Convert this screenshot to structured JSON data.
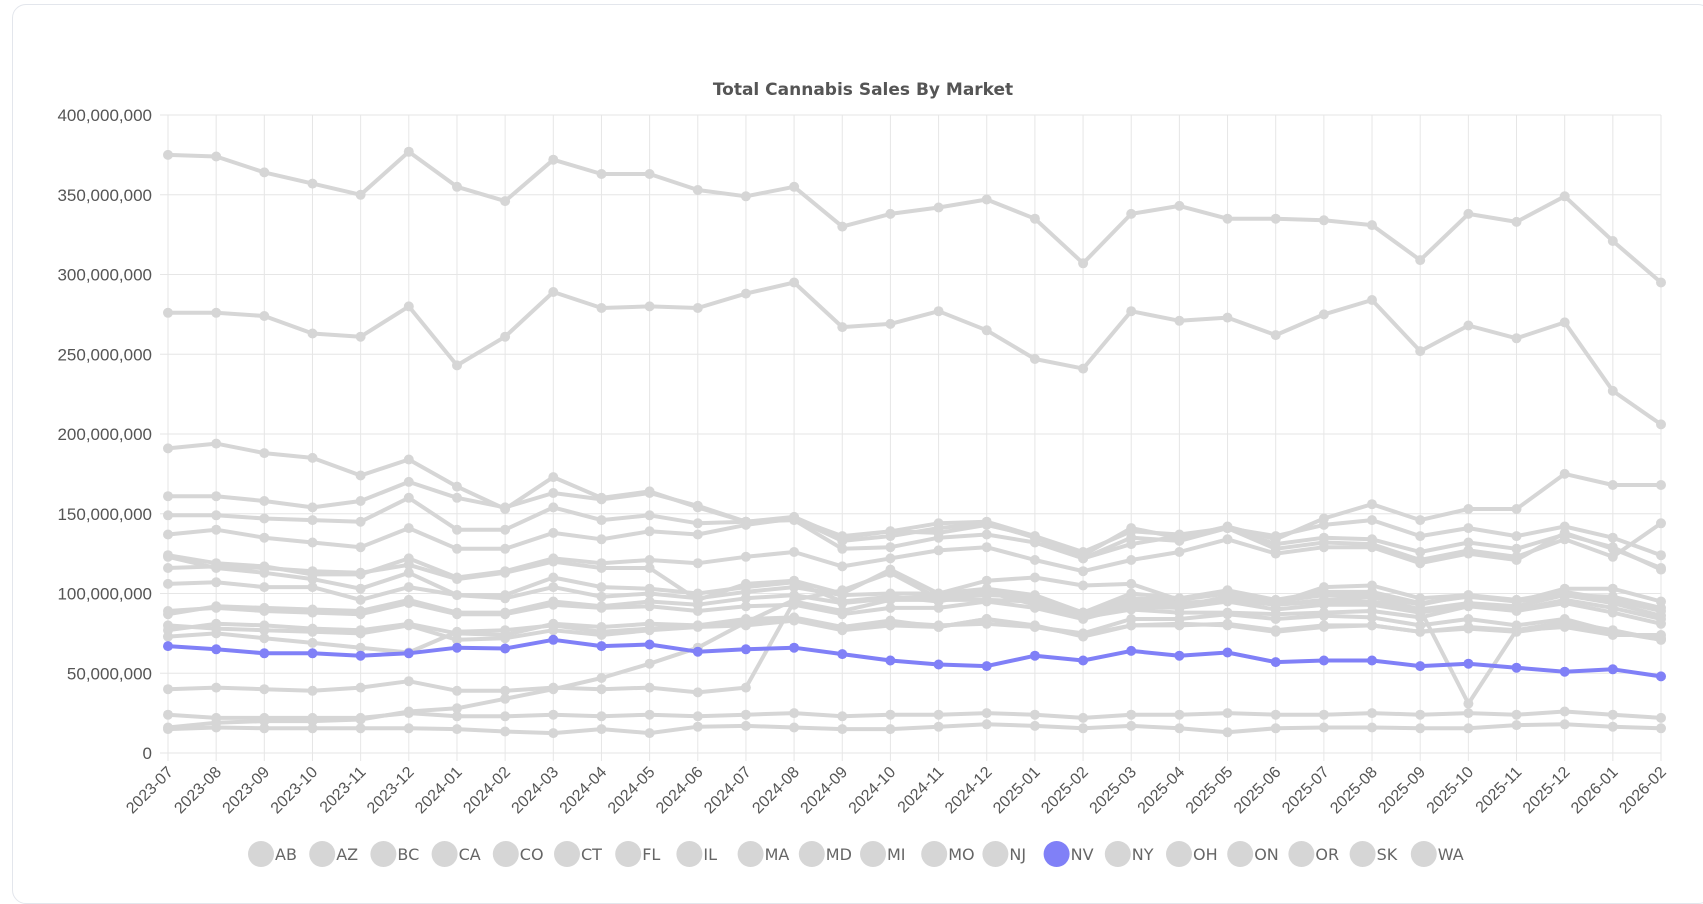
{
  "chart_data": {
    "type": "line",
    "title": "Total Cannabis Sales By Market",
    "xlabel": "",
    "ylabel": "",
    "ylim": [
      0,
      400000000
    ],
    "yticks": [
      "0",
      "50,000,000",
      "100,000,000",
      "150,000,000",
      "200,000,000",
      "250,000,000",
      "300,000,000",
      "350,000,000",
      "400,000,000"
    ],
    "grid": true,
    "legend_position": "bottom",
    "highlighted_series": "NV",
    "colors": {
      "muted": "#d6d6d6",
      "highlight": "#8080f7",
      "grid": "#e6e6e6",
      "text": "#555555"
    },
    "x": [
      "2023-07",
      "2023-08",
      "2023-09",
      "2023-10",
      "2023-11",
      "2023-12",
      "2024-01",
      "2024-02",
      "2024-03",
      "2024-04",
      "2024-05",
      "2024-06",
      "2024-07",
      "2024-08",
      "2024-09",
      "2024-10",
      "2024-11",
      "2024-12",
      "2025-01",
      "2025-02",
      "2025-03",
      "2025-04",
      "2025-05",
      "2025-06",
      "2025-07",
      "2025-08",
      "2025-09",
      "2025-10",
      "2025-11",
      "2025-12",
      "2026-01",
      "2026-02"
    ],
    "series": [
      {
        "name": "AB",
        "values": [
          124000000,
          119000000,
          117000000,
          112000000,
          112000000,
          122000000,
          110000000,
          114000000,
          122000000,
          119000000,
          121000000,
          119000000,
          123000000,
          126000000,
          117000000,
          122000000,
          127000000,
          129000000,
          121000000,
          114000000,
          121000000,
          126000000,
          134000000,
          125000000,
          129000000,
          129000000,
          119000000,
          125000000,
          121000000,
          138000000,
          128000000,
          116000000
        ]
      },
      {
        "name": "AZ",
        "values": [
          80000000,
          78000000,
          77000000,
          76000000,
          75000000,
          80000000,
          71000000,
          72000000,
          77000000,
          74000000,
          77000000,
          79000000,
          80000000,
          83000000,
          77000000,
          80000000,
          79000000,
          84000000,
          80000000,
          73000000,
          80000000,
          81000000,
          80000000,
          76000000,
          79000000,
          80000000,
          76000000,
          79000000,
          77000000,
          82000000,
          77000000,
          71000000
        ]
      },
      {
        "name": "BC",
        "values": [
          87000000,
          92000000,
          91000000,
          90000000,
          89000000,
          96000000,
          88000000,
          88000000,
          95000000,
          92000000,
          95000000,
          93000000,
          97000000,
          99000000,
          94000000,
          97000000,
          98000000,
          101000000,
          96000000,
          88000000,
          97000000,
          96000000,
          101000000,
          95000000,
          99000000,
          99000000,
          93000000,
          99000000,
          96000000,
          101000000,
          96000000,
          89000000
        ]
      },
      {
        "name": "CA",
        "values": [
          375000000,
          374000000,
          364000000,
          357000000,
          350000000,
          377000000,
          355000000,
          346000000,
          372000000,
          363000000,
          363000000,
          353000000,
          349000000,
          355000000,
          330000000,
          338000000,
          342000000,
          347000000,
          335000000,
          307000000,
          338000000,
          343000000,
          335000000,
          335000000,
          334000000,
          331000000,
          309000000,
          338000000,
          333000000,
          349000000,
          321000000,
          295000000
        ]
      },
      {
        "name": "CO",
        "values": [
          123000000,
          116000000,
          113000000,
          109000000,
          103000000,
          113000000,
          99000000,
          99000000,
          110000000,
          104000000,
          103000000,
          100000000,
          104000000,
          107000000,
          95000000,
          98000000,
          95000000,
          101000000,
          93000000,
          86000000,
          94000000,
          92000000,
          98000000,
          93000000,
          95000000,
          95000000,
          90000000,
          94000000,
          92000000,
          99000000,
          94000000,
          86000000
        ]
      },
      {
        "name": "CT",
        "values": [
          24000000,
          22000000,
          22000000,
          22000000,
          22000000,
          25000000,
          23000000,
          23000000,
          24000000,
          23000000,
          24000000,
          23000000,
          24000000,
          25000000,
          23000000,
          24000000,
          24000000,
          25000000,
          24000000,
          22000000,
          24000000,
          24000000,
          25000000,
          24000000,
          24000000,
          25000000,
          24000000,
          25000000,
          24000000,
          26000000,
          24000000,
          22000000
        ]
      },
      {
        "name": "FL",
        "values": [
          161000000,
          161000000,
          158000000,
          154000000,
          158000000,
          170000000,
          160000000,
          154000000,
          163000000,
          159000000,
          163000000,
          155000000,
          145000000,
          148000000,
          135000000,
          139000000,
          138000000,
          143000000,
          136000000,
          124000000,
          141000000,
          135000000,
          142000000,
          134000000,
          147000000,
          156000000,
          146000000,
          153000000,
          153000000,
          175000000,
          168000000,
          168000000
        ]
      },
      {
        "name": "IL",
        "values": [
          149000000,
          149000000,
          147000000,
          146000000,
          145000000,
          160000000,
          140000000,
          140000000,
          154000000,
          146000000,
          149000000,
          144000000,
          145000000,
          147000000,
          136000000,
          139000000,
          144000000,
          145000000,
          136000000,
          126000000,
          139000000,
          137000000,
          141000000,
          136000000,
          143000000,
          146000000,
          136000000,
          141000000,
          136000000,
          142000000,
          135000000,
          124000000
        ]
      },
      {
        "name": "MA",
        "values": [
          137000000,
          140000000,
          135000000,
          132000000,
          129000000,
          141000000,
          128000000,
          128000000,
          138000000,
          134000000,
          139000000,
          137000000,
          143000000,
          147000000,
          133000000,
          136000000,
          141000000,
          144000000,
          135000000,
          122000000,
          135000000,
          133000000,
          141000000,
          131000000,
          135000000,
          134000000,
          126000000,
          132000000,
          128000000,
          137000000,
          129000000,
          115000000
        ]
      },
      {
        "name": "MD",
        "values": [
          89000000,
          91000000,
          89000000,
          88000000,
          87000000,
          94000000,
          87000000,
          87000000,
          93000000,
          91000000,
          92000000,
          89000000,
          92000000,
          93000000,
          87000000,
          91000000,
          91000000,
          95000000,
          91000000,
          84000000,
          92000000,
          91000000,
          95000000,
          90000000,
          93000000,
          93000000,
          88000000,
          93000000,
          90000000,
          96000000,
          91000000,
          84000000
        ]
      },
      {
        "name": "MI",
        "values": [
          191000000,
          194000000,
          188000000,
          185000000,
          174000000,
          184000000,
          167000000,
          153000000,
          173000000,
          160000000,
          164000000,
          154000000,
          145000000,
          146000000,
          128000000,
          129000000,
          135000000,
          137000000,
          132000000,
          122000000,
          131000000,
          136000000,
          141000000,
          128000000,
          132000000,
          131000000,
          121000000,
          127000000,
          123000000,
          134000000,
          123000000,
          144000000
        ]
      },
      {
        "name": "MO",
        "values": [
          116000000,
          117000000,
          116000000,
          114000000,
          113000000,
          118000000,
          109000000,
          113000000,
          120000000,
          116000000,
          116000000,
          96000000,
          106000000,
          108000000,
          100000000,
          115000000,
          100000000,
          108000000,
          110000000,
          105000000,
          106000000,
          96000000,
          100000000,
          94000000,
          104000000,
          105000000,
          97000000,
          99000000,
          95000000,
          103000000,
          103000000,
          95000000
        ]
      },
      {
        "name": "NJ",
        "values": [
          73000000,
          75000000,
          72000000,
          69000000,
          66000000,
          63000000,
          76000000,
          77000000,
          80000000,
          76000000,
          78000000,
          80000000,
          84000000,
          85000000,
          79000000,
          83000000,
          79000000,
          84000000,
          79000000,
          75000000,
          84000000,
          84000000,
          87000000,
          84000000,
          86000000,
          85000000,
          80000000,
          84000000,
          80000000,
          84000000,
          76000000,
          71000000
        ]
      },
      {
        "name": "NV",
        "values": [
          67000000,
          65000000,
          62500000,
          62500000,
          61000000,
          62500000,
          66000000,
          65500000,
          71000000,
          67000000,
          68000000,
          63500000,
          65000000,
          66000000,
          62000000,
          58000000,
          55500000,
          54500000,
          61000000,
          58000000,
          64000000,
          61000000,
          63000000,
          57000000,
          58000000,
          58000000,
          54500000,
          56000000,
          53500000,
          51000000,
          52500000,
          48000000
        ]
      },
      {
        "name": "NY",
        "values": [
          16000000,
          19000000,
          20000000,
          20000000,
          21000000,
          26000000,
          28000000,
          34000000,
          40000000,
          47000000,
          56000000,
          66000000,
          82000000,
          96000000,
          102000000,
          113000000,
          97000000,
          99000000,
          98000000,
          85000000,
          90000000,
          88000000,
          88000000,
          87000000,
          88000000,
          89000000,
          85000000,
          92000000,
          89000000,
          94000000,
          88000000,
          81000000
        ]
      },
      {
        "name": "OH",
        "values": [
          106000000,
          107000000,
          104000000,
          104000000,
          96000000,
          104000000,
          99000000,
          97000000,
          104000000,
          98000000,
          100000000,
          97000000,
          101000000,
          104000000,
          99000000,
          100000000,
          100000000,
          103000000,
          99000000,
          88000000,
          100000000,
          97000000,
          102000000,
          96000000,
          101000000,
          101000000,
          94000000,
          98000000,
          95000000,
          99000000,
          98000000,
          91000000
        ]
      },
      {
        "name": "ON",
        "values": [
          276000000,
          276000000,
          274000000,
          263000000,
          261000000,
          280000000,
          243000000,
          261000000,
          289000000,
          279000000,
          280000000,
          279000000,
          288000000,
          295000000,
          267000000,
          269000000,
          277000000,
          265000000,
          247000000,
          241000000,
          277000000,
          271000000,
          273000000,
          262000000,
          275000000,
          284000000,
          252000000,
          268000000,
          260000000,
          270000000,
          227000000,
          206000000
        ]
      },
      {
        "name": "OR",
        "values": [
          77000000,
          81000000,
          80000000,
          78000000,
          77000000,
          81000000,
          75000000,
          74000000,
          81000000,
          79000000,
          81000000,
          80000000,
          82000000,
          84000000,
          79000000,
          82000000,
          80000000,
          81000000,
          79000000,
          74000000,
          80000000,
          80000000,
          81000000,
          77000000,
          80000000,
          80000000,
          76000000,
          78000000,
          76000000,
          80000000,
          76000000,
          72000000
        ]
      },
      {
        "name": "SK",
        "values": [
          15000000,
          16000000,
          15500000,
          15500000,
          15500000,
          15500000,
          15000000,
          13500000,
          12500000,
          15000000,
          12500000,
          16500000,
          17000000,
          16000000,
          15000000,
          15000000,
          16500000,
          18000000,
          17000000,
          15500000,
          17000000,
          15500000,
          13000000,
          15500000,
          16000000,
          16000000,
          15500000,
          15500000,
          17500000,
          18000000,
          16500000,
          15500000
        ]
      },
      {
        "name": "WA",
        "values": [
          40000000,
          41000000,
          40000000,
          39000000,
          41000000,
          45000000,
          39000000,
          39000000,
          41000000,
          40000000,
          41000000,
          38000000,
          41000000,
          95000000,
          89000000,
          96000000,
          96000000,
          96000000,
          95000000,
          88000000,
          96000000,
          94000000,
          96000000,
          93000000,
          96000000,
          98000000,
          90000000,
          31000000,
          77000000,
          79000000,
          74000000,
          74000000
        ]
      }
    ]
  }
}
